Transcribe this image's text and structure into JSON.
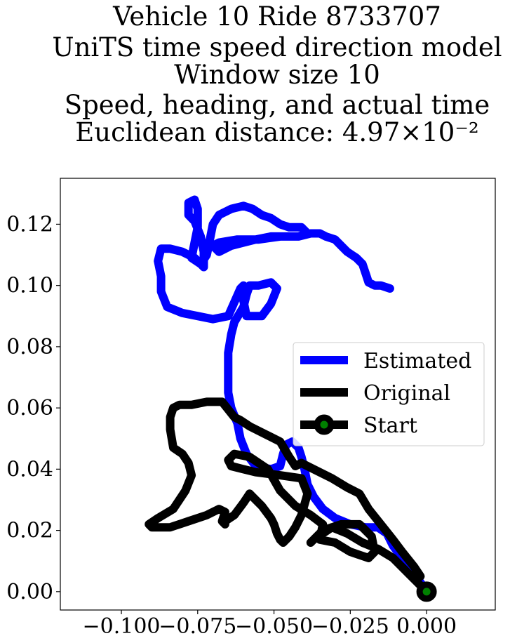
{
  "chart_data": {
    "type": "line",
    "title_lines": [
      "Vehicle 10 Ride 8733707",
      "UniTS time speed direction model",
      "Window size 10",
      "Speed, heading, and actual time",
      "Euclidean distance: 4.97×10⁻²"
    ],
    "xlabel": "",
    "ylabel": "",
    "xlim": [
      -0.12,
      0.0225
    ],
    "ylim": [
      -0.006,
      0.135
    ],
    "x_ticks": [
      -0.1,
      -0.075,
      -0.05,
      -0.025,
      0.0
    ],
    "x_tick_labels": [
      "−0.100",
      "−0.075",
      "−0.050",
      "−0.025",
      "0.000"
    ],
    "y_ticks": [
      0.0,
      0.02,
      0.04,
      0.06,
      0.08,
      0.1,
      0.12
    ],
    "y_tick_labels": [
      "0.00",
      "0.02",
      "0.04",
      "0.06",
      "0.08",
      "0.10",
      "0.12"
    ],
    "grid": false,
    "legend_position": "center-right",
    "series": [
      {
        "name": "Estimated",
        "color": "#0000ff",
        "points": [
          [
            0.0,
            0.0
          ],
          [
            -0.004,
            0.006
          ],
          [
            -0.008,
            0.011
          ],
          [
            -0.011,
            0.015
          ],
          [
            -0.013,
            0.019
          ],
          [
            -0.016,
            0.021
          ],
          [
            -0.02,
            0.021
          ],
          [
            -0.025,
            0.022
          ],
          [
            -0.03,
            0.024
          ],
          [
            -0.034,
            0.027
          ],
          [
            -0.037,
            0.031
          ],
          [
            -0.039,
            0.035
          ],
          [
            -0.04,
            0.04
          ],
          [
            -0.041,
            0.044
          ],
          [
            -0.042,
            0.047
          ],
          [
            -0.044,
            0.049
          ],
          [
            -0.046,
            0.048
          ],
          [
            -0.047,
            0.045
          ],
          [
            -0.048,
            0.041
          ],
          [
            -0.051,
            0.04
          ],
          [
            -0.056,
            0.041
          ],
          [
            -0.059,
            0.045
          ],
          [
            -0.061,
            0.05
          ],
          [
            -0.062,
            0.055
          ],
          [
            -0.064,
            0.06
          ],
          [
            -0.065,
            0.065
          ],
          [
            -0.065,
            0.072
          ],
          [
            -0.065,
            0.078
          ],
          [
            -0.064,
            0.084
          ],
          [
            -0.063,
            0.088
          ],
          [
            -0.06,
            0.093
          ],
          [
            -0.059,
            0.097
          ],
          [
            -0.058,
            0.1
          ],
          [
            -0.055,
            0.1
          ],
          [
            -0.051,
            0.101
          ],
          [
            -0.049,
            0.099
          ],
          [
            -0.051,
            0.094
          ],
          [
            -0.054,
            0.09
          ],
          [
            -0.059,
            0.09
          ],
          [
            -0.06,
            0.095
          ],
          [
            -0.06,
            0.1
          ],
          [
            -0.061,
            0.099
          ],
          [
            -0.065,
            0.09
          ],
          [
            -0.07,
            0.089
          ],
          [
            -0.075,
            0.09
          ],
          [
            -0.08,
            0.091
          ],
          [
            -0.085,
            0.093
          ],
          [
            -0.087,
            0.098
          ],
          [
            -0.087,
            0.103
          ],
          [
            -0.088,
            0.108
          ],
          [
            -0.087,
            0.112
          ],
          [
            -0.084,
            0.112
          ],
          [
            -0.08,
            0.111
          ],
          [
            -0.076,
            0.109
          ],
          [
            -0.073,
            0.106
          ],
          [
            -0.073,
            0.111
          ],
          [
            -0.074,
            0.116
          ],
          [
            -0.076,
            0.121
          ],
          [
            -0.078,
            0.123
          ],
          [
            -0.078,
            0.127
          ],
          [
            -0.076,
            0.128
          ],
          [
            -0.075,
            0.125
          ],
          [
            -0.075,
            0.119
          ],
          [
            -0.076,
            0.114
          ],
          [
            -0.077,
            0.109
          ],
          [
            -0.074,
            0.107
          ],
          [
            -0.072,
            0.11
          ],
          [
            -0.071,
            0.115
          ],
          [
            -0.07,
            0.12
          ],
          [
            -0.068,
            0.123
          ],
          [
            -0.064,
            0.125
          ],
          [
            -0.06,
            0.126
          ],
          [
            -0.057,
            0.125
          ],
          [
            -0.054,
            0.123
          ],
          [
            -0.051,
            0.122
          ],
          [
            -0.048,
            0.12
          ],
          [
            -0.045,
            0.119
          ],
          [
            -0.041,
            0.119
          ],
          [
            -0.039,
            0.117
          ],
          [
            -0.042,
            0.116
          ],
          [
            -0.046,
            0.116
          ],
          [
            -0.051,
            0.116
          ],
          [
            -0.056,
            0.115
          ],
          [
            -0.06,
            0.114
          ],
          [
            -0.064,
            0.113
          ],
          [
            -0.068,
            0.111
          ],
          [
            -0.07,
            0.113
          ],
          [
            -0.068,
            0.114
          ],
          [
            -0.062,
            0.115
          ],
          [
            -0.055,
            0.115
          ],
          [
            -0.048,
            0.116
          ],
          [
            -0.042,
            0.116
          ],
          [
            -0.038,
            0.117
          ],
          [
            -0.035,
            0.117
          ],
          [
            -0.033,
            0.116
          ],
          [
            -0.03,
            0.115
          ],
          [
            -0.028,
            0.113
          ],
          [
            -0.026,
            0.111
          ],
          [
            -0.023,
            0.109
          ],
          [
            -0.021,
            0.107
          ],
          [
            -0.02,
            0.104
          ],
          [
            -0.019,
            0.101
          ],
          [
            -0.017,
            0.1
          ],
          [
            -0.015,
            0.1
          ],
          [
            -0.012,
            0.099
          ]
        ]
      },
      {
        "name": "Original",
        "color": "#000000",
        "points": [
          [
            0.0,
            0.0
          ],
          [
            -0.006,
            0.006
          ],
          [
            -0.011,
            0.011
          ],
          [
            -0.016,
            0.014
          ],
          [
            -0.021,
            0.016
          ],
          [
            -0.026,
            0.019
          ],
          [
            -0.031,
            0.021
          ],
          [
            -0.037,
            0.017
          ],
          [
            -0.038,
            0.016
          ],
          [
            -0.034,
            0.02
          ],
          [
            -0.028,
            0.022
          ],
          [
            -0.022,
            0.022
          ],
          [
            -0.018,
            0.018
          ],
          [
            -0.017,
            0.013
          ],
          [
            -0.019,
            0.011
          ],
          [
            -0.025,
            0.013
          ],
          [
            -0.03,
            0.016
          ],
          [
            -0.035,
            0.017
          ],
          [
            -0.034,
            0.022
          ],
          [
            -0.038,
            0.025
          ],
          [
            -0.043,
            0.028
          ],
          [
            -0.048,
            0.033
          ],
          [
            -0.052,
            0.04
          ],
          [
            -0.058,
            0.044
          ],
          [
            -0.063,
            0.045
          ],
          [
            -0.065,
            0.043
          ],
          [
            -0.064,
            0.041
          ],
          [
            -0.06,
            0.04
          ],
          [
            -0.056,
            0.039
          ],
          [
            -0.048,
            0.038
          ],
          [
            -0.041,
            0.037
          ],
          [
            -0.039,
            0.032
          ],
          [
            -0.041,
            0.025
          ],
          [
            -0.043,
            0.021
          ],
          [
            -0.045,
            0.018
          ],
          [
            -0.047,
            0.016
          ],
          [
            -0.048,
            0.017
          ],
          [
            -0.049,
            0.019
          ],
          [
            -0.05,
            0.022
          ],
          [
            -0.051,
            0.024
          ],
          [
            -0.054,
            0.028
          ],
          [
            -0.057,
            0.031
          ],
          [
            -0.058,
            0.032
          ],
          [
            -0.06,
            0.029
          ],
          [
            -0.063,
            0.025
          ],
          [
            -0.066,
            0.023
          ],
          [
            -0.066,
            0.022
          ],
          [
            -0.067,
            0.023
          ],
          [
            -0.066,
            0.026
          ],
          [
            -0.068,
            0.027
          ],
          [
            -0.072,
            0.025
          ],
          [
            -0.078,
            0.023
          ],
          [
            -0.084,
            0.021
          ],
          [
            -0.09,
            0.021
          ],
          [
            -0.091,
            0.022
          ],
          [
            -0.088,
            0.024
          ],
          [
            -0.083,
            0.027
          ],
          [
            -0.079,
            0.033
          ],
          [
            -0.077,
            0.038
          ],
          [
            -0.078,
            0.042
          ],
          [
            -0.08,
            0.045
          ],
          [
            -0.083,
            0.047
          ],
          [
            -0.084,
            0.053
          ],
          [
            -0.084,
            0.057
          ],
          [
            -0.083,
            0.06
          ],
          [
            -0.081,
            0.061
          ],
          [
            -0.077,
            0.061
          ],
          [
            -0.072,
            0.062
          ],
          [
            -0.067,
            0.062
          ],
          [
            -0.063,
            0.057
          ],
          [
            -0.061,
            0.056
          ],
          [
            -0.058,
            0.054
          ],
          [
            -0.052,
            0.051
          ],
          [
            -0.048,
            0.049
          ],
          [
            -0.045,
            0.044
          ],
          [
            -0.043,
            0.041
          ],
          [
            -0.041,
            0.042
          ],
          [
            -0.037,
            0.04
          ],
          [
            -0.031,
            0.037
          ],
          [
            -0.026,
            0.034
          ],
          [
            -0.022,
            0.032
          ],
          [
            -0.019,
            0.027
          ],
          [
            -0.015,
            0.022
          ],
          [
            -0.011,
            0.017
          ],
          [
            -0.008,
            0.013
          ],
          [
            -0.004,
            0.008
          ],
          [
            -0.002,
            0.005
          ]
        ]
      },
      {
        "name": "Start",
        "color": "#000000",
        "marker_color": "#008000",
        "points": [
          [
            0.0,
            0.0
          ]
        ]
      }
    ]
  }
}
